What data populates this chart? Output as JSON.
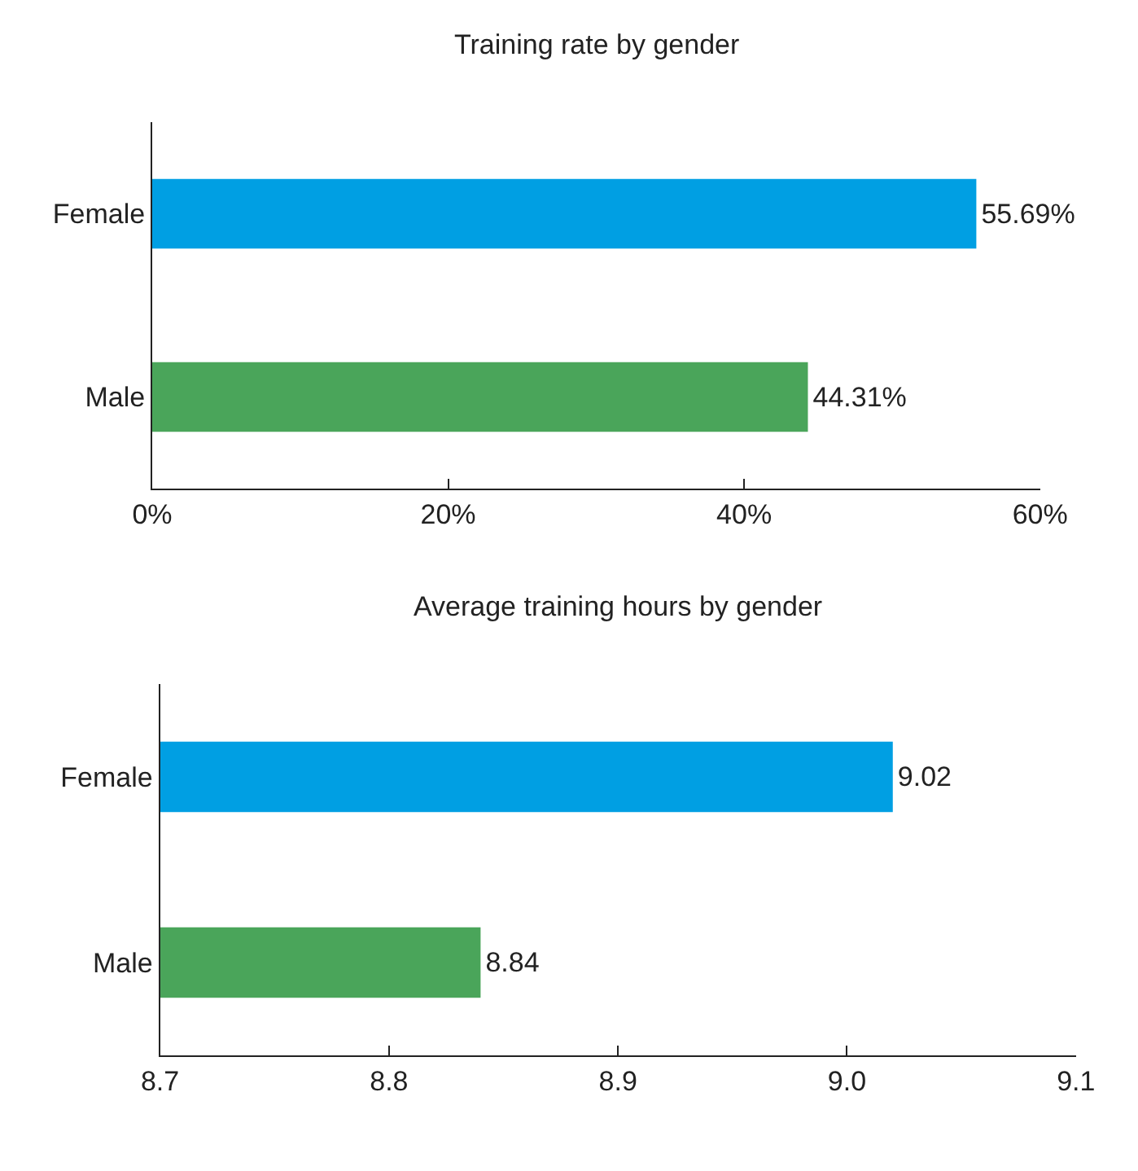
{
  "chart_data": [
    {
      "type": "bar",
      "orientation": "horizontal",
      "title": "Training rate by gender",
      "categories": [
        "Female",
        "Male"
      ],
      "values": [
        55.69,
        44.31
      ],
      "colors": [
        "#009fe3",
        "#4aa55a"
      ],
      "value_labels": [
        "55.69%",
        "44.31%"
      ],
      "xlim": [
        0,
        60
      ],
      "xticks": [
        {
          "value": 0,
          "label": "0%"
        },
        {
          "value": 20,
          "label": "20%"
        },
        {
          "value": 40,
          "label": "40%"
        },
        {
          "value": 60,
          "label": "60%"
        }
      ]
    },
    {
      "type": "bar",
      "orientation": "horizontal",
      "title": "Average training hours by gender",
      "categories": [
        "Female",
        "Male"
      ],
      "values": [
        9.02,
        8.84
      ],
      "colors": [
        "#009fe3",
        "#4aa55a"
      ],
      "data_labels": true,
      "xlim": [
        8.7,
        9.1
      ],
      "xticks": [
        8.7,
        8.8,
        8.9,
        {
          "value": 9.0,
          "label": "9.0"
        },
        9.1
      ]
    }
  ]
}
